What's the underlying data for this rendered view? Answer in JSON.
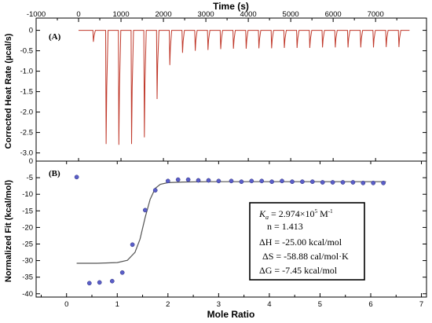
{
  "chart_data": [
    {
      "panel_label": "(A)",
      "type": "line",
      "title": "Time (s)",
      "ylabel": "Corrected Heat Rate (µcal/s)",
      "xlim": [
        -1000,
        8200
      ],
      "ylim": [
        -3.2,
        0.3
      ],
      "x_ticks": [
        "-1000",
        "0",
        "1000",
        "2000",
        "3000",
        "4000",
        "5000",
        "6000",
        "7000"
      ],
      "x_tick_values": [
        -1000,
        0,
        1000,
        2000,
        3000,
        4000,
        5000,
        6000,
        7000
      ],
      "y_ticks": [
        "0",
        "-0.5",
        "-1.0",
        "-1.5",
        "-2.0",
        "-2.5",
        "-3.0"
      ],
      "y_tick_values": [
        0,
        -0.5,
        -1.0,
        -1.5,
        -2.0,
        -2.5,
        -3.0
      ],
      "baseline": 0,
      "trace_color": "#c0392b",
      "injection_times": [
        350,
        650,
        950,
        1250,
        1550,
        1850,
        2150,
        2450,
        2750,
        3050,
        3350,
        3650,
        3950,
        4250,
        4550,
        4850,
        5150,
        5450,
        5750,
        6050,
        6350,
        6650,
        6950,
        7250,
        7550
      ],
      "peak_values": [
        -0.28,
        -2.78,
        -2.8,
        -2.78,
        -2.62,
        -1.68,
        -0.85,
        -0.55,
        -0.5,
        -0.48,
        -0.46,
        -0.45,
        -0.45,
        -0.44,
        -0.44,
        -0.43,
        -0.43,
        -0.43,
        -0.42,
        -0.42,
        -0.42,
        -0.42,
        -0.42,
        -0.41,
        -0.41
      ],
      "trace_end": 7800
    },
    {
      "panel_label": "(B)",
      "type": "scatter",
      "xlabel": "Mole Ratio",
      "ylabel": "Normalized Fit (kcal/mol)",
      "xlim": [
        -0.6,
        7.1
      ],
      "ylim": [
        -41,
        0
      ],
      "x_ticks": [
        "0",
        "1",
        "2",
        "3",
        "4",
        "5",
        "6",
        "7"
      ],
      "x_tick_values": [
        0,
        1,
        2,
        3,
        4,
        5,
        6,
        7
      ],
      "y_ticks": [
        "0",
        "-5",
        "-10",
        "-15",
        "-20",
        "-25",
        "-30",
        "-35",
        "-40"
      ],
      "y_tick_values": [
        0,
        -5,
        -10,
        -15,
        -20,
        -25,
        -30,
        -35,
        -40
      ],
      "point_color": "#5a5ec8",
      "fit_color": "#555555",
      "points": {
        "x": [
          0.2,
          0.45,
          0.65,
          0.9,
          1.1,
          1.3,
          1.55,
          1.75,
          2.0,
          2.2,
          2.4,
          2.6,
          2.8,
          3.0,
          3.25,
          3.45,
          3.65,
          3.85,
          4.05,
          4.25,
          4.45,
          4.65,
          4.85,
          5.05,
          5.25,
          5.45,
          5.65,
          5.85,
          6.05,
          6.25
        ],
        "y": [
          -4.8,
          -36.8,
          -36.6,
          -36.2,
          -33.6,
          -25.2,
          -14.8,
          -8.8,
          -6.0,
          -5.6,
          -5.6,
          -5.8,
          -5.8,
          -6.0,
          -6.0,
          -6.2,
          -6.0,
          -6.0,
          -6.2,
          -6.0,
          -6.2,
          -6.2,
          -6.2,
          -6.4,
          -6.4,
          -6.4,
          -6.4,
          -6.6,
          -6.6,
          -6.6
        ]
      },
      "fit": {
        "x": [
          0.2,
          0.6,
          1.0,
          1.2,
          1.35,
          1.45,
          1.55,
          1.65,
          1.75,
          1.85,
          2.0,
          2.3,
          2.8,
          3.5,
          4.5,
          5.5,
          6.3
        ],
        "y": [
          -30.8,
          -30.8,
          -30.6,
          -29.9,
          -27.5,
          -23.5,
          -17.0,
          -11.5,
          -8.2,
          -7.0,
          -6.5,
          -6.3,
          -6.2,
          -6.2,
          -6.2,
          -6.2,
          -6.2
        ]
      },
      "stats": {
        "ka_symbol": "K",
        "ka_subscript": "a",
        "ka_value": " = 2.974×10",
        "ka_exponent": "5",
        "ka_unit": " M",
        "ka_unit_exponent": "-1",
        "n": "n = 1.413",
        "dH": "ΔH = -25.00 kcal/mol",
        "dS": "ΔS = -58.88 cal/mol·K",
        "dG": "ΔG = -7.45 kcal/mol"
      }
    }
  ]
}
